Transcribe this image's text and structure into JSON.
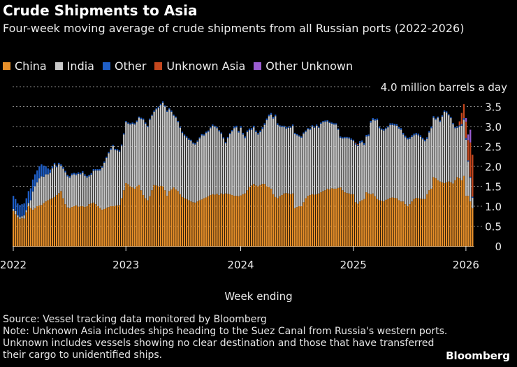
{
  "title": "Crude Shipments to Asia",
  "subtitle": "Four-week moving average of crude shipments from all Russian ports (2022-2026)",
  "source": "Source: Vessel tracking data monitored by Bloomberg",
  "note": "Note: Unknown Asia includes ships heading to the Suez Canal from Russia's western ports. Unknown includes vessels showing no clear destination and those that have transferred their cargo to unidentified ships.",
  "logo": "Bloomberg",
  "chart_data": {
    "type": "bar",
    "stacked": true,
    "title": "Crude Shipments to Asia",
    "xlabel": "Week ending",
    "ylabel": "",
    "y_unit_label": "4.0 million barrels a day",
    "ylim": [
      0,
      4.0
    ],
    "y_ticks": [
      "0",
      "0.5",
      "1.0",
      "1.5",
      "2.0",
      "2.5",
      "3.0",
      "3.5",
      "4.0 million barrels a day"
    ],
    "y_tick_values": [
      0,
      0.5,
      1.0,
      1.5,
      2.0,
      2.5,
      3.0,
      3.5,
      4.0
    ],
    "x_ticks": [
      "2022",
      "2023",
      "2024",
      "2025",
      "2026"
    ],
    "x_tick_week_index": [
      0,
      52,
      105,
      157,
      209
    ],
    "x_frequency": "weekly",
    "grid": "horizontal dotted",
    "legend_placement": "top-left",
    "series": [
      {
        "name": "China",
        "color": "#e8902a",
        "values": [
          0.88,
          0.8,
          0.72,
          0.68,
          0.7,
          0.69,
          0.85,
          1.0,
          0.95,
          0.91,
          0.95,
          1.0,
          1.02,
          1.03,
          1.08,
          1.12,
          1.15,
          1.18,
          1.2,
          1.23,
          1.28,
          1.33,
          1.38,
          1.2,
          1.05,
          0.97,
          0.95,
          0.98,
          1.0,
          1.02,
          0.99,
          1.0,
          1.0,
          0.98,
          1.0,
          1.05,
          1.07,
          1.09,
          1.05,
          1.0,
          0.95,
          0.91,
          0.93,
          0.96,
          0.98,
          1.0,
          1.0,
          1.01,
          1.02,
          1.03,
          1.2,
          1.4,
          1.58,
          1.55,
          1.5,
          1.47,
          1.44,
          1.5,
          1.53,
          1.4,
          1.28,
          1.2,
          1.15,
          1.25,
          1.4,
          1.53,
          1.52,
          1.5,
          1.51,
          1.5,
          1.4,
          1.26,
          1.38,
          1.42,
          1.47,
          1.42,
          1.38,
          1.3,
          1.23,
          1.2,
          1.18,
          1.15,
          1.12,
          1.1,
          1.09,
          1.12,
          1.15,
          1.17,
          1.2,
          1.22,
          1.25,
          1.28,
          1.3,
          1.29,
          1.31,
          1.28,
          1.32,
          1.3,
          1.32,
          1.31,
          1.3,
          1.28,
          1.26,
          1.26,
          1.25,
          1.27,
          1.3,
          1.32,
          1.4,
          1.48,
          1.52,
          1.56,
          1.52,
          1.5,
          1.53,
          1.56,
          1.56,
          1.5,
          1.48,
          1.44,
          1.3,
          1.23,
          1.2,
          1.25,
          1.28,
          1.32,
          1.33,
          1.32,
          1.3,
          1.32,
          0.95,
          0.98,
          1.0,
          1.0,
          1.1,
          1.2,
          1.26,
          1.28,
          1.3,
          1.29,
          1.3,
          1.32,
          1.35,
          1.38,
          1.4,
          1.44,
          1.42,
          1.45,
          1.44,
          1.44,
          1.46,
          1.47,
          1.4,
          1.35,
          1.33,
          1.32,
          1.3,
          1.3,
          1.1,
          1.06,
          1.12,
          1.15,
          1.18,
          1.35,
          1.32,
          1.3,
          1.32,
          1.25,
          1.18,
          1.15,
          1.14,
          1.12,
          1.16,
          1.18,
          1.21,
          1.22,
          1.21,
          1.2,
          1.15,
          1.12,
          1.12,
          1.05,
          1.0,
          1.05,
          1.12,
          1.18,
          1.21,
          1.2,
          1.19,
          1.18,
          1.18,
          1.3,
          1.4,
          1.44,
          1.73,
          1.7,
          1.65,
          1.62,
          1.6,
          1.58,
          1.6,
          1.62,
          1.6,
          1.57,
          1.65,
          1.73,
          1.7,
          1.65,
          1.76,
          1.26,
          1.26,
          1.12,
          0.95
        ]
      },
      {
        "name": "India",
        "color": "#c8c8c8",
        "values": [
          0.05,
          0.08,
          0.05,
          0.05,
          0.05,
          0.08,
          0.05,
          0.08,
          0.2,
          0.46,
          0.55,
          0.6,
          0.68,
          0.72,
          0.66,
          0.68,
          0.65,
          0.66,
          0.75,
          0.82,
          0.7,
          0.72,
          0.63,
          0.74,
          0.8,
          0.78,
          0.76,
          0.8,
          0.8,
          0.76,
          0.82,
          0.8,
          0.84,
          0.78,
          0.72,
          0.7,
          0.72,
          0.8,
          0.85,
          0.9,
          0.95,
          1.06,
          1.16,
          1.25,
          1.35,
          1.42,
          1.51,
          1.4,
          1.38,
          1.34,
          1.32,
          1.4,
          1.53,
          1.52,
          1.55,
          1.6,
          1.61,
          1.62,
          1.69,
          1.79,
          1.89,
          1.87,
          1.84,
          1.92,
          1.87,
          1.84,
          1.91,
          1.97,
          2.03,
          2.1,
          2.1,
          2.11,
          2.05,
          1.95,
          1.8,
          1.8,
          1.73,
          1.67,
          1.61,
          1.57,
          1.54,
          1.52,
          1.52,
          1.47,
          1.46,
          1.5,
          1.55,
          1.61,
          1.57,
          1.62,
          1.62,
          1.68,
          1.72,
          1.7,
          1.65,
          1.6,
          1.5,
          1.4,
          1.26,
          1.4,
          1.51,
          1.6,
          1.7,
          1.72,
          1.6,
          1.7,
          1.5,
          1.39,
          1.46,
          1.43,
          1.4,
          1.42,
          1.34,
          1.3,
          1.33,
          1.38,
          1.48,
          1.66,
          1.78,
          1.86,
          1.9,
          2.03,
          1.84,
          1.75,
          1.71,
          1.67,
          1.62,
          1.65,
          1.67,
          1.7,
          1.86,
          1.8,
          1.75,
          1.72,
          1.72,
          1.67,
          1.67,
          1.64,
          1.7,
          1.68,
          1.72,
          1.65,
          1.72,
          1.73,
          1.72,
          1.69,
          1.67,
          1.62,
          1.61,
          1.61,
          1.46,
          1.25,
          1.3,
          1.36,
          1.38,
          1.38,
          1.37,
          1.34,
          1.45,
          1.45,
          1.46,
          1.46,
          1.36,
          1.4,
          1.44,
          1.8,
          1.85,
          1.9,
          1.98,
          1.81,
          1.78,
          1.78,
          1.78,
          1.8,
          1.83,
          1.82,
          1.82,
          1.82,
          1.8,
          1.8,
          1.68,
          1.68,
          1.68,
          1.64,
          1.62,
          1.6,
          1.59,
          1.58,
          1.55,
          1.5,
          1.45,
          1.39,
          1.45,
          1.52,
          1.49,
          1.47,
          1.57,
          1.5,
          1.65,
          1.79,
          1.75,
          1.66,
          1.61,
          1.49,
          1.31,
          1.24,
          1.3,
          1.37,
          1.41,
          1.41,
          0.86,
          0.59,
          0.26
        ]
      },
      {
        "name": "Other",
        "color": "#1f5fc8",
        "values": [
          0.33,
          0.3,
          0.3,
          0.3,
          0.3,
          0.3,
          0.3,
          0.3,
          0.3,
          0.3,
          0.3,
          0.3,
          0.3,
          0.3,
          0.28,
          0.2,
          0.15,
          0.08,
          0.05,
          0.04,
          0.04,
          0.04,
          0.04,
          0.04,
          0.04,
          0.04,
          0.04,
          0.04,
          0.04,
          0.04,
          0.04,
          0.04,
          0.04,
          0.04,
          0.04,
          0.04,
          0.04,
          0.04,
          0.03,
          0.03,
          0.03,
          0.03,
          0.03,
          0.03,
          0.03,
          0.03,
          0.03,
          0.03,
          0.03,
          0.03,
          0.03,
          0.03,
          0.03,
          0.03,
          0.03,
          0.03,
          0.03,
          0.03,
          0.03,
          0.03,
          0.03,
          0.03,
          0.03,
          0.03,
          0.03,
          0.03,
          0.03,
          0.03,
          0.03,
          0.03,
          0.03,
          0.03,
          0.03,
          0.03,
          0.03,
          0.03,
          0.03,
          0.03,
          0.03,
          0.03,
          0.03,
          0.03,
          0.03,
          0.03,
          0.03,
          0.03,
          0.03,
          0.03,
          0.03,
          0.03,
          0.03,
          0.03,
          0.03,
          0.03,
          0.03,
          0.03,
          0.03,
          0.03,
          0.03,
          0.03,
          0.03,
          0.03,
          0.04,
          0.04,
          0.04,
          0.04,
          0.04,
          0.04,
          0.04,
          0.04,
          0.04,
          0.04,
          0.04,
          0.04,
          0.04,
          0.04,
          0.04,
          0.04,
          0.04,
          0.04,
          0.04,
          0.04,
          0.04,
          0.03,
          0.03,
          0.03,
          0.03,
          0.03,
          0.03,
          0.03,
          0.03,
          0.03,
          0.03,
          0.03,
          0.03,
          0.03,
          0.03,
          0.03,
          0.03,
          0.03,
          0.03,
          0.03,
          0.03,
          0.03,
          0.03,
          0.03,
          0.03,
          0.03,
          0.03,
          0.03,
          0.03,
          0.03,
          0.03,
          0.03,
          0.03,
          0.03,
          0.03,
          0.03,
          0.03,
          0.03,
          0.05,
          0.04,
          0.04,
          0.04,
          0.04,
          0.04,
          0.04,
          0.04,
          0.04,
          0.04,
          0.03,
          0.03,
          0.03,
          0.03,
          0.04,
          0.04,
          0.04,
          0.04,
          0.04,
          0.04,
          0.04,
          0.04,
          0.04,
          0.04,
          0.04,
          0.04,
          0.04,
          0.04,
          0.04,
          0.04,
          0.04,
          0.04,
          0.04,
          0.04,
          0.04,
          0.03,
          0.03,
          0.03,
          0.03,
          0.03,
          0.03,
          0.03,
          0.03,
          0.03,
          0.03,
          0.03,
          0.03,
          0.04,
          0.04,
          0.04,
          0.03,
          0.03,
          0.03,
          0.03,
          0.03,
          0.02,
          0.02,
          0.02
        ]
      },
      {
        "name": "Unknown Asia",
        "color": "#c4471e",
        "values": [
          0,
          0,
          0,
          0,
          0,
          0,
          0,
          0,
          0,
          0,
          0,
          0,
          0,
          0,
          0,
          0,
          0,
          0,
          0,
          0,
          0,
          0,
          0,
          0,
          0,
          0,
          0,
          0,
          0,
          0,
          0,
          0,
          0,
          0,
          0,
          0,
          0,
          0,
          0,
          0,
          0,
          0,
          0,
          0,
          0,
          0,
          0,
          0,
          0,
          0,
          0,
          0,
          0,
          0,
          0,
          0,
          0,
          0,
          0,
          0,
          0,
          0,
          0,
          0,
          0,
          0,
          0,
          0,
          0,
          0,
          0,
          0,
          0,
          0,
          0,
          0,
          0,
          0,
          0,
          0,
          0,
          0,
          0,
          0,
          0,
          0,
          0,
          0,
          0,
          0,
          0,
          0,
          0,
          0,
          0,
          0,
          0,
          0,
          0,
          0,
          0,
          0,
          0,
          0,
          0,
          0,
          0,
          0,
          0,
          0,
          0,
          0,
          0,
          0,
          0,
          0,
          0,
          0,
          0,
          0,
          0,
          0,
          0,
          0,
          0,
          0,
          0,
          0,
          0,
          0,
          0,
          0,
          0,
          0,
          0,
          0,
          0,
          0,
          0,
          0,
          0,
          0,
          0,
          0,
          0,
          0,
          0,
          0,
          0,
          0,
          0,
          0,
          0,
          0,
          0,
          0,
          0,
          0,
          0.02,
          0.02,
          0,
          0,
          0,
          0,
          0,
          0,
          0,
          0,
          0,
          0,
          0,
          0,
          0,
          0,
          0,
          0,
          0,
          0,
          0,
          0,
          0,
          0,
          0,
          0,
          0,
          0,
          0,
          0,
          0,
          0,
          0,
          0,
          0,
          0,
          0,
          0,
          0,
          0,
          0,
          0,
          0,
          0,
          0,
          0,
          0,
          0,
          0.1,
          0.28,
          0.35,
          0.41,
          0.51,
          0.86,
          1.05,
          1.32,
          1.41
        ]
      },
      {
        "name": "Other Unknown",
        "color": "#9a5cd0",
        "values": [
          0,
          0,
          0,
          0,
          0,
          0,
          0,
          0,
          0,
          0,
          0,
          0,
          0,
          0,
          0,
          0,
          0,
          0,
          0,
          0,
          0,
          0,
          0,
          0,
          0,
          0,
          0,
          0,
          0,
          0,
          0,
          0,
          0,
          0,
          0,
          0,
          0,
          0,
          0,
          0,
          0,
          0,
          0,
          0,
          0,
          0,
          0,
          0,
          0,
          0,
          0,
          0,
          0,
          0,
          0,
          0,
          0,
          0,
          0,
          0,
          0,
          0,
          0,
          0,
          0,
          0,
          0,
          0,
          0,
          0,
          0,
          0,
          0,
          0,
          0,
          0,
          0,
          0,
          0,
          0,
          0,
          0,
          0,
          0,
          0,
          0,
          0,
          0,
          0,
          0,
          0,
          0,
          0,
          0,
          0,
          0,
          0,
          0,
          0,
          0,
          0,
          0,
          0,
          0,
          0,
          0,
          0,
          0,
          0,
          0,
          0,
          0,
          0,
          0,
          0,
          0,
          0,
          0,
          0,
          0,
          0,
          0,
          0,
          0,
          0,
          0,
          0,
          0,
          0,
          0,
          0,
          0,
          0,
          0,
          0,
          0,
          0,
          0,
          0,
          0,
          0,
          0,
          0,
          0,
          0,
          0,
          0,
          0,
          0,
          0,
          0,
          0,
          0,
          0,
          0,
          0,
          0,
          0,
          0,
          0,
          0,
          0,
          0,
          0,
          0,
          0,
          0,
          0,
          0,
          0,
          0,
          0,
          0,
          0,
          0,
          0,
          0,
          0,
          0,
          0,
          0,
          0,
          0,
          0,
          0,
          0,
          0,
          0,
          0,
          0,
          0,
          0,
          0,
          0,
          0,
          0,
          0,
          0,
          0,
          0,
          0,
          0,
          0,
          0,
          0,
          0,
          0,
          0,
          0,
          0.09,
          0.14,
          0.32
        ]
      }
    ]
  }
}
